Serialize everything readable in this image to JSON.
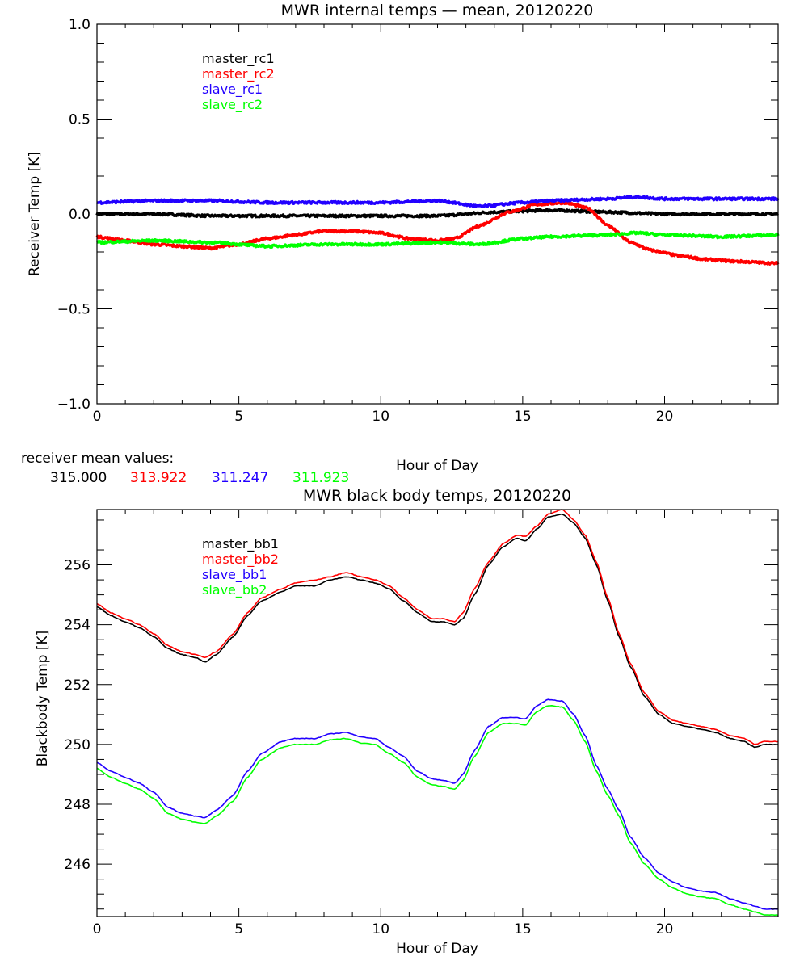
{
  "chart_data": [
    {
      "type": "line",
      "title": "MWR internal temps — mean, 20120220",
      "xlabel": "Hour of Day",
      "ylabel": "Receiver Temp [K]",
      "xlim": [
        0,
        24
      ],
      "ylim": [
        -1.0,
        1.0
      ],
      "x_ticks": [
        0,
        5,
        10,
        15,
        20
      ],
      "x_tick_labels": [
        "0",
        "5",
        "10",
        "15",
        "20"
      ],
      "x_minor_step": 1.5,
      "y_ticks": [
        -1.0,
        -0.5,
        0.0,
        0.5,
        1.0
      ],
      "y_tick_labels": [
        "−1.0",
        "−0.5",
        "0.0",
        "0.5",
        "1.0"
      ],
      "y_minor_step": 0.1,
      "grid": false,
      "legend_position": "top-left",
      "noisy": true,
      "series": [
        {
          "name": "master_rc1",
          "color": "#000000",
          "x": [
            0,
            2,
            4,
            6,
            8,
            10,
            12,
            14,
            16,
            18,
            20,
            22,
            24
          ],
          "values": [
            0.0,
            0.0,
            -0.01,
            -0.01,
            -0.01,
            -0.01,
            -0.01,
            0.01,
            0.02,
            0.01,
            0.0,
            0.0,
            0.0
          ]
        },
        {
          "name": "master_rc2",
          "color": "#ff0000",
          "x": [
            0,
            1,
            2,
            3,
            4,
            5,
            6,
            7,
            8,
            9,
            10,
            11,
            12,
            12.6,
            13.5,
            14.5,
            15.5,
            16.5,
            17.3,
            18,
            18.8,
            19.5,
            20.5,
            21.5,
            22.5,
            24
          ],
          "values": [
            -0.12,
            -0.14,
            -0.16,
            -0.17,
            -0.18,
            -0.16,
            -0.13,
            -0.11,
            -0.09,
            -0.09,
            -0.1,
            -0.13,
            -0.14,
            -0.13,
            -0.06,
            0.01,
            0.05,
            0.06,
            0.03,
            -0.06,
            -0.15,
            -0.19,
            -0.22,
            -0.24,
            -0.25,
            -0.26
          ]
        },
        {
          "name": "slave_rc1",
          "color": "#2200ff",
          "x": [
            0,
            2,
            4,
            6,
            8,
            10,
            12,
            13.5,
            15,
            16,
            18,
            19,
            20,
            22,
            24
          ],
          "values": [
            0.06,
            0.07,
            0.07,
            0.06,
            0.06,
            0.06,
            0.07,
            0.04,
            0.06,
            0.07,
            0.08,
            0.09,
            0.08,
            0.08,
            0.08
          ]
        },
        {
          "name": "slave_rc2",
          "color": "#00ff00",
          "x": [
            0,
            2,
            4,
            6,
            8,
            10,
            12,
            13.5,
            15,
            16,
            18,
            19,
            20,
            22,
            24
          ],
          "values": [
            -0.15,
            -0.14,
            -0.15,
            -0.17,
            -0.16,
            -0.16,
            -0.15,
            -0.16,
            -0.13,
            -0.12,
            -0.11,
            -0.1,
            -0.11,
            -0.12,
            -0.11
          ]
        }
      ],
      "annotation": {
        "label": "receiver mean values:",
        "values": [
          {
            "text": "315.000",
            "color": "#000000"
          },
          {
            "text": "313.922",
            "color": "#ff0000"
          },
          {
            "text": "311.247",
            "color": "#2200ff"
          },
          {
            "text": "311.923",
            "color": "#00ff00"
          }
        ]
      }
    },
    {
      "type": "line",
      "title": "MWR black body temps, 20120220",
      "xlabel": "Hour of Day",
      "ylabel": "Blackbody Temp [K]",
      "xlim": [
        0,
        24
      ],
      "ylim": [
        244.25,
        257.85
      ],
      "x_ticks": [
        0,
        5,
        10,
        15,
        20
      ],
      "x_tick_labels": [
        "0",
        "5",
        "10",
        "15",
        "20"
      ],
      "x_minor_step": 1.5,
      "y_ticks": [
        246,
        248,
        250,
        252,
        254,
        256
      ],
      "y_tick_labels": [
        "246",
        "248",
        "250",
        "252",
        "254",
        "256"
      ],
      "y_minor_step": 0.5,
      "grid": false,
      "legend_position": "top-left",
      "noisy": false,
      "series": [
        {
          "name": "master_bb1",
          "color": "#000000",
          "x": [
            0,
            0.5,
            1,
            1.5,
            2,
            2.5,
            3,
            3.5,
            3.8,
            4.2,
            4.8,
            5.3,
            5.8,
            6.5,
            7,
            7.7,
            8.2,
            8.8,
            9.3,
            9.8,
            10.3,
            10.8,
            11.3,
            11.8,
            12.2,
            12.6,
            12.9,
            13.3,
            13.8,
            14.3,
            14.8,
            15.1,
            15.5,
            15.9,
            16.4,
            16.8,
            17.2,
            17.6,
            18.0,
            18.4,
            18.8,
            19.3,
            19.8,
            20.3,
            20.8,
            21.3,
            21.8,
            22.3,
            22.8,
            23.2,
            23.5,
            24
          ],
          "values": [
            254.6,
            254.3,
            254.1,
            253.9,
            253.6,
            253.2,
            253.0,
            252.9,
            252.75,
            253.0,
            253.6,
            254.3,
            254.8,
            255.1,
            255.3,
            255.3,
            255.5,
            255.6,
            255.5,
            255.4,
            255.2,
            254.8,
            254.4,
            254.1,
            254.1,
            254.0,
            254.2,
            255.0,
            256.0,
            256.6,
            256.9,
            256.8,
            257.2,
            257.6,
            257.7,
            257.4,
            256.9,
            256.0,
            254.8,
            253.6,
            252.6,
            251.6,
            251.0,
            250.7,
            250.6,
            250.5,
            250.4,
            250.2,
            250.1,
            249.9,
            250.0,
            250.0
          ]
        },
        {
          "name": "master_bb2",
          "color": "#ff0000",
          "x": [
            0,
            0.5,
            1,
            1.5,
            2,
            2.5,
            3,
            3.5,
            3.8,
            4.2,
            4.8,
            5.3,
            5.8,
            6.5,
            7,
            7.7,
            8.2,
            8.8,
            9.3,
            9.8,
            10.3,
            10.8,
            11.3,
            11.8,
            12.2,
            12.6,
            12.9,
            13.3,
            13.8,
            14.3,
            14.8,
            15.1,
            15.5,
            15.9,
            16.4,
            16.8,
            17.2,
            17.6,
            18.0,
            18.4,
            18.8,
            19.3,
            19.8,
            20.3,
            20.8,
            21.3,
            21.8,
            22.3,
            22.8,
            23.2,
            23.5,
            24
          ],
          "values": [
            254.7,
            254.4,
            254.2,
            254.0,
            253.7,
            253.3,
            253.1,
            253.0,
            252.9,
            253.1,
            253.7,
            254.4,
            254.9,
            255.2,
            255.4,
            255.5,
            255.6,
            255.75,
            255.6,
            255.5,
            255.3,
            254.9,
            254.5,
            254.2,
            254.2,
            254.1,
            254.4,
            255.2,
            256.1,
            256.7,
            257.0,
            256.95,
            257.3,
            257.7,
            257.85,
            257.5,
            257.0,
            256.1,
            254.9,
            253.7,
            252.7,
            251.7,
            251.1,
            250.8,
            250.7,
            250.6,
            250.5,
            250.3,
            250.2,
            250.0,
            250.1,
            250.1
          ]
        },
        {
          "name": "slave_bb1",
          "color": "#2200ff",
          "x": [
            0,
            0.5,
            1,
            1.5,
            2,
            2.5,
            3,
            3.5,
            3.8,
            4.2,
            4.8,
            5.3,
            5.8,
            6.5,
            7,
            7.7,
            8.2,
            8.8,
            9.3,
            9.8,
            10.3,
            10.8,
            11.3,
            11.8,
            12.2,
            12.6,
            12.9,
            13.3,
            13.8,
            14.3,
            14.8,
            15.1,
            15.5,
            15.9,
            16.4,
            16.8,
            17.2,
            17.6,
            18.0,
            18.4,
            18.8,
            19.3,
            19.8,
            20.3,
            20.8,
            21.3,
            21.8,
            22.3,
            22.8,
            23.2,
            23.5,
            24
          ],
          "values": [
            249.4,
            249.1,
            248.9,
            248.7,
            248.4,
            247.9,
            247.7,
            247.6,
            247.55,
            247.8,
            248.3,
            249.1,
            249.7,
            250.1,
            250.2,
            250.2,
            250.35,
            250.4,
            250.25,
            250.2,
            249.9,
            249.6,
            249.1,
            248.85,
            248.8,
            248.7,
            249.0,
            249.8,
            250.6,
            250.9,
            250.9,
            250.85,
            251.3,
            251.5,
            251.45,
            251.0,
            250.3,
            249.3,
            248.5,
            247.8,
            246.9,
            246.2,
            245.7,
            245.4,
            245.2,
            245.1,
            245.05,
            244.85,
            244.7,
            244.6,
            244.5,
            244.5
          ]
        },
        {
          "name": "slave_bb2",
          "color": "#00ff00",
          "x": [
            0,
            0.5,
            1,
            1.5,
            2,
            2.5,
            3,
            3.5,
            3.8,
            4.2,
            4.8,
            5.3,
            5.8,
            6.5,
            7,
            7.7,
            8.2,
            8.8,
            9.3,
            9.8,
            10.3,
            10.8,
            11.3,
            11.8,
            12.2,
            12.6,
            12.9,
            13.3,
            13.8,
            14.3,
            14.8,
            15.1,
            15.5,
            15.9,
            16.4,
            16.8,
            17.2,
            17.6,
            18.0,
            18.4,
            18.8,
            19.3,
            19.8,
            20.3,
            20.8,
            21.3,
            21.8,
            22.3,
            22.8,
            23.2,
            23.5,
            24
          ],
          "values": [
            249.2,
            248.9,
            248.7,
            248.5,
            248.2,
            247.7,
            247.5,
            247.4,
            247.35,
            247.6,
            248.1,
            248.9,
            249.5,
            249.9,
            250.0,
            250.0,
            250.15,
            250.2,
            250.05,
            250.0,
            249.7,
            249.4,
            248.9,
            248.65,
            248.6,
            248.5,
            248.8,
            249.6,
            250.4,
            250.7,
            250.7,
            250.65,
            251.1,
            251.3,
            251.25,
            250.8,
            250.1,
            249.1,
            248.3,
            247.6,
            246.7,
            246.0,
            245.5,
            245.2,
            245.0,
            244.9,
            244.85,
            244.65,
            244.5,
            244.4,
            244.3,
            244.3
          ]
        }
      ]
    }
  ]
}
